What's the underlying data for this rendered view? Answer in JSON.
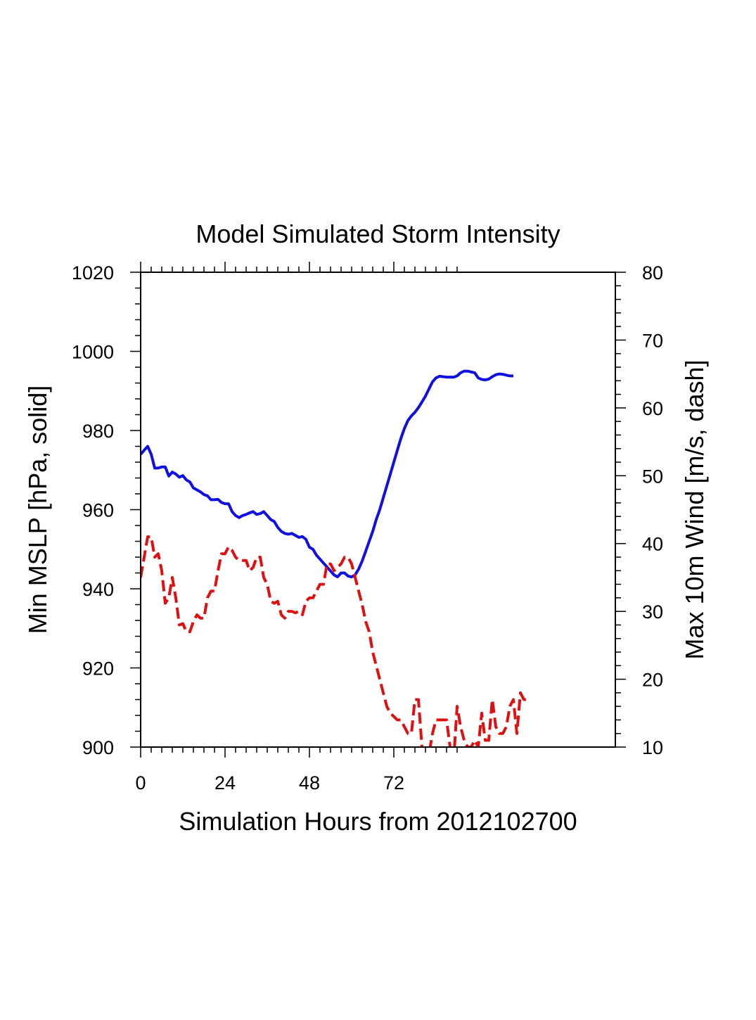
{
  "chart_data": {
    "type": "line",
    "title": "Model Simulated Storm Intensity",
    "xlabel": "Simulation Hours from 2012102700",
    "ylabel_left": "Min MSLP  [hPa, solid]",
    "ylabel_right": "Max 10m Wind  [m/s, dash]",
    "xlim": [
      0,
      135
    ],
    "ylim_left": [
      900,
      1020
    ],
    "ylim_right": [
      10,
      80
    ],
    "x_ticks": [
      0,
      24,
      48,
      72
    ],
    "y_ticks_left": [
      900,
      920,
      940,
      960,
      980,
      1000,
      1020
    ],
    "y_ticks_right": [
      10,
      20,
      30,
      40,
      50,
      60,
      70,
      80
    ],
    "series": [
      {
        "axis": "left",
        "style": "solid",
        "color": "#1010e0",
        "points": [
          [
            0,
            974
          ],
          [
            1,
            975
          ],
          [
            2,
            976
          ],
          [
            3,
            974
          ],
          [
            4,
            970.5
          ],
          [
            5,
            970.5
          ],
          [
            6,
            970.8
          ],
          [
            7,
            970.8
          ],
          [
            8,
            968.5
          ],
          [
            9,
            969.5
          ],
          [
            10,
            969
          ],
          [
            11,
            968.2
          ],
          [
            12,
            968.6
          ],
          [
            13,
            967.5
          ],
          [
            14,
            967
          ],
          [
            15,
            965.5
          ],
          [
            16,
            965
          ],
          [
            17,
            964.5
          ],
          [
            18,
            963.8
          ],
          [
            19,
            963.5
          ],
          [
            20,
            962.5
          ],
          [
            21,
            962.5
          ],
          [
            22,
            962.6
          ],
          [
            23,
            961.8
          ],
          [
            24,
            961.5
          ],
          [
            25,
            961.5
          ],
          [
            26,
            959.5
          ],
          [
            27,
            958.5
          ],
          [
            28,
            958
          ],
          [
            29,
            958.5
          ],
          [
            30,
            958.8
          ],
          [
            31,
            959.2
          ],
          [
            32,
            959.5
          ],
          [
            33,
            958.8
          ],
          [
            34,
            959
          ],
          [
            35,
            959.5
          ],
          [
            36,
            958.5
          ],
          [
            37,
            957.5
          ],
          [
            38,
            957
          ],
          [
            39,
            955.5
          ],
          [
            40,
            954.5
          ],
          [
            41,
            954
          ],
          [
            42,
            953.8
          ],
          [
            43,
            954
          ],
          [
            44,
            953.5
          ],
          [
            45,
            953
          ],
          [
            46,
            953.2
          ],
          [
            47,
            952.5
          ],
          [
            48,
            950.5
          ],
          [
            49,
            950
          ],
          [
            50,
            948.5
          ],
          [
            51,
            947.5
          ],
          [
            52,
            946.5
          ],
          [
            53,
            945.5
          ],
          [
            54,
            944.5
          ],
          [
            55,
            943.5
          ],
          [
            56,
            943
          ],
          [
            57,
            944
          ],
          [
            58,
            944
          ],
          [
            59,
            943.2
          ],
          [
            60,
            943
          ],
          [
            61,
            943.5
          ],
          [
            62,
            945
          ],
          [
            63,
            947
          ],
          [
            64,
            949.5
          ],
          [
            65,
            952
          ],
          [
            66,
            954.5
          ],
          [
            67,
            957.5
          ],
          [
            68,
            960
          ],
          [
            69,
            963
          ],
          [
            70,
            966
          ],
          [
            71,
            969
          ],
          [
            72,
            972
          ],
          [
            73,
            975
          ],
          [
            74,
            978
          ],
          [
            75,
            980.5
          ],
          [
            76,
            982.5
          ],
          [
            77,
            983.7
          ],
          [
            78,
            984.6
          ],
          [
            79,
            985.8
          ],
          [
            80,
            987.2
          ],
          [
            81,
            988.7
          ],
          [
            82,
            990.5
          ],
          [
            83,
            992.3
          ],
          [
            84,
            993.3
          ],
          [
            85,
            993.7
          ],
          [
            86,
            993.6
          ],
          [
            87,
            993.5
          ],
          [
            88,
            993.5
          ],
          [
            89,
            993.5
          ],
          [
            90,
            993.8
          ],
          [
            91,
            994.6
          ],
          [
            92,
            995
          ],
          [
            93,
            995
          ],
          [
            94,
            994.8
          ],
          [
            95,
            994.6
          ],
          [
            96,
            993.3
          ],
          [
            97,
            992.9
          ],
          [
            98,
            992.8
          ],
          [
            99,
            993
          ],
          [
            100,
            993.6
          ],
          [
            101,
            994.1
          ],
          [
            102,
            994.3
          ],
          [
            103,
            994.2
          ],
          [
            104,
            994
          ],
          [
            105,
            993.8
          ],
          [
            106,
            993.8
          ]
        ]
      },
      {
        "axis": "right",
        "style": "dash",
        "color": "#e01010",
        "points": [
          [
            0,
            35
          ],
          [
            1,
            38
          ],
          [
            2,
            41
          ],
          [
            3,
            41
          ],
          [
            4,
            38
          ],
          [
            5,
            38.5
          ],
          [
            6,
            36
          ],
          [
            7,
            31.2
          ],
          [
            8,
            32
          ],
          [
            9,
            35
          ],
          [
            10,
            32
          ],
          [
            11,
            28
          ],
          [
            12,
            28.2
          ],
          [
            13,
            27
          ],
          [
            14,
            27
          ],
          [
            15,
            28.5
          ],
          [
            16,
            29.5
          ],
          [
            17,
            29
          ],
          [
            18,
            29
          ],
          [
            19,
            32
          ],
          [
            20,
            33
          ],
          [
            21,
            33
          ],
          [
            22,
            36
          ],
          [
            23,
            38.5
          ],
          [
            24,
            38.5
          ],
          [
            25,
            39.5
          ],
          [
            26,
            39
          ],
          [
            27,
            38
          ],
          [
            28,
            37.5
          ],
          [
            29,
            37.5
          ],
          [
            30,
            37.5
          ],
          [
            31,
            36
          ],
          [
            32,
            36.5
          ],
          [
            33,
            38
          ],
          [
            34,
            38
          ],
          [
            35,
            35
          ],
          [
            36,
            34
          ],
          [
            37,
            31.5
          ],
          [
            38,
            31.2
          ],
          [
            39,
            31.5
          ],
          [
            40,
            29.5
          ],
          [
            41,
            29
          ],
          [
            42,
            30
          ],
          [
            43,
            30
          ],
          [
            44,
            29.8
          ],
          [
            45,
            30
          ],
          [
            46,
            29.5
          ],
          [
            47,
            31.5
          ],
          [
            48,
            32
          ],
          [
            49,
            32
          ],
          [
            50,
            33
          ],
          [
            51,
            34
          ],
          [
            52,
            34
          ],
          [
            53,
            37
          ],
          [
            54,
            37
          ],
          [
            55,
            36
          ],
          [
            56,
            36.5
          ],
          [
            57,
            37
          ],
          [
            58,
            38
          ],
          [
            59,
            38
          ],
          [
            60,
            37
          ],
          [
            61,
            35
          ],
          [
            62,
            33
          ],
          [
            63,
            31
          ],
          [
            64,
            28.5
          ],
          [
            65,
            27
          ],
          [
            66,
            24
          ],
          [
            67,
            22
          ],
          [
            68,
            20
          ],
          [
            69,
            18
          ],
          [
            70,
            16
          ],
          [
            71,
            15
          ],
          [
            72,
            14.5
          ],
          [
            73,
            14
          ],
          [
            74,
            14
          ],
          [
            75,
            13
          ],
          [
            76,
            12
          ],
          [
            77,
            12
          ],
          [
            78,
            17
          ],
          [
            79,
            17
          ],
          [
            80,
            10
          ],
          [
            81,
            9
          ],
          [
            82,
            9
          ],
          [
            83,
            12
          ],
          [
            84,
            14
          ],
          [
            85,
            14
          ],
          [
            86,
            14
          ],
          [
            87,
            14
          ],
          [
            88,
            10
          ],
          [
            89,
            8
          ],
          [
            90,
            16
          ],
          [
            91,
            13
          ],
          [
            92,
            11
          ],
          [
            93,
            10
          ],
          [
            94,
            10
          ],
          [
            95,
            11
          ],
          [
            96,
            10
          ],
          [
            97,
            15
          ],
          [
            98,
            11
          ],
          [
            99,
            11
          ],
          [
            100,
            17
          ],
          [
            101,
            13
          ],
          [
            102,
            12
          ],
          [
            103,
            12
          ],
          [
            104,
            13
          ],
          [
            105,
            16
          ],
          [
            106,
            17
          ],
          [
            107,
            12
          ],
          [
            108,
            18
          ],
          [
            109,
            17
          ],
          [
            110,
            17
          ]
        ]
      }
    ]
  }
}
